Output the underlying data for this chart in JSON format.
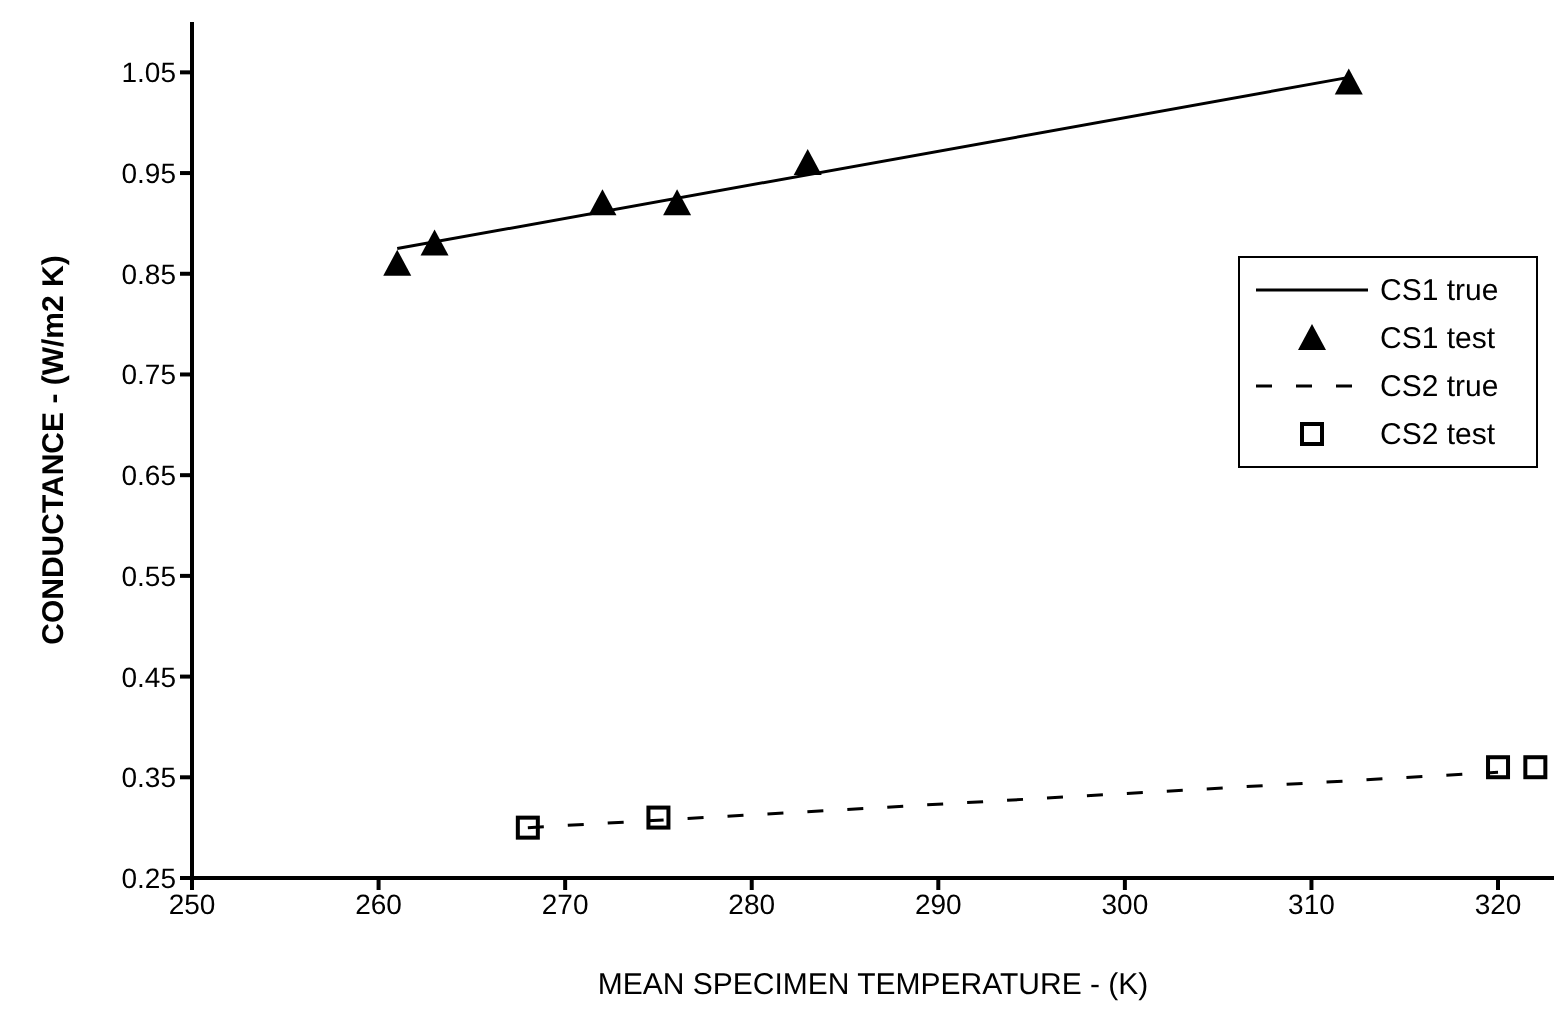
{
  "chart_data": {
    "type": "scatter",
    "xlabel": "MEAN SPECIMEN TEMPERATURE - (K)",
    "ylabel": "CONDUCTANCE - (W/m2 K)",
    "xlim": [
      250,
      323
    ],
    "xticks": [
      250,
      260,
      270,
      280,
      290,
      300,
      310,
      320
    ],
    "ylim": [
      0.25,
      1.1
    ],
    "yticks": [
      0.25,
      0.35,
      0.45,
      0.55,
      0.65,
      0.75,
      0.85,
      0.95,
      1.05
    ],
    "grid": false,
    "legend": "right",
    "series": [
      {
        "name": "CS1 true",
        "type": "line",
        "color": "#000000",
        "line_style": "solid",
        "marker": "none",
        "x": [
          261,
          312
        ],
        "values": [
          0.875,
          1.045
        ]
      },
      {
        "name": "CS1 test",
        "color": "#000000",
        "marker": "triangle",
        "x": [
          261,
          263,
          272,
          276,
          283,
          312
        ],
        "values": [
          0.86,
          0.88,
          0.92,
          0.92,
          0.96,
          1.04
        ]
      },
      {
        "name": "CS2 true",
        "type": "line",
        "color": "#000000",
        "line_style": "dashed",
        "marker": "none",
        "x": [
          268,
          320
        ],
        "values": [
          0.3,
          0.355
        ]
      },
      {
        "name": "CS2 test",
        "color": "#000000",
        "marker": "square",
        "x": [
          268,
          275,
          320,
          322
        ],
        "values": [
          0.3,
          0.31,
          0.36,
          0.36
        ]
      }
    ]
  }
}
